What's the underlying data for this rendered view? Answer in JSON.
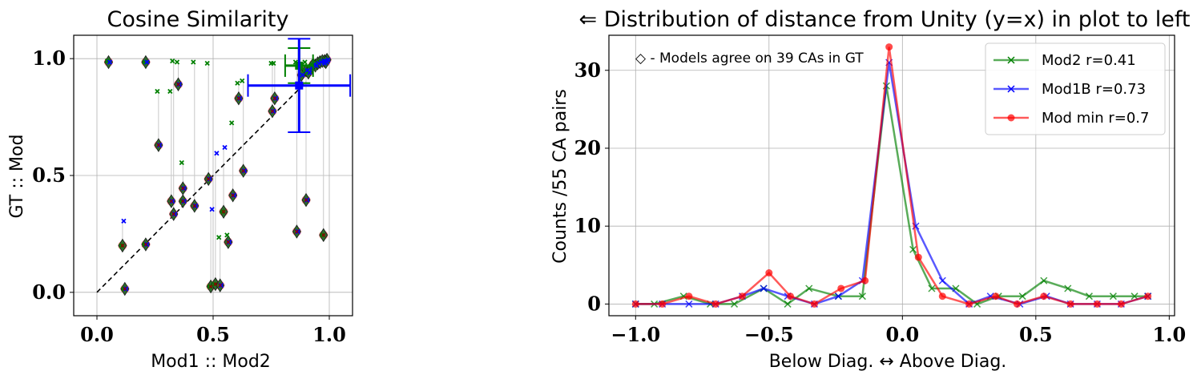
{
  "chart_data": [
    {
      "type": "scatter",
      "title": "Cosine Similarity",
      "xlabel": "Mod1 :: Mod2",
      "ylabel": "GT :: Mod",
      "xlim": [
        -0.1,
        1.1
      ],
      "ylim": [
        -0.1,
        1.1
      ],
      "xticks": [
        "0.0",
        "0.5",
        "1.0"
      ],
      "yticks": [
        "0.0",
        "0.5",
        "1.0"
      ],
      "grid": true,
      "diagonal": "y=x dashed line",
      "points": [
        {
          "x": 0.05,
          "y": 0.985,
          "gt_mod2": 0.99,
          "gt_mod1b": 0.985,
          "gt_min": 0.985
        },
        {
          "x": 0.11,
          "y": 0.2,
          "gt_mod2": 0.2,
          "gt_mod1b": 0.305,
          "gt_min": 0.2
        },
        {
          "x": 0.12,
          "y": 0.015,
          "gt_mod2": 0.015,
          "gt_mod1b": 0.015,
          "gt_min": 0.015
        },
        {
          "x": 0.21,
          "y": 0.985,
          "gt_mod2": 0.985,
          "gt_mod1b": 0.985,
          "gt_min": 0.985
        },
        {
          "x": 0.21,
          "y": 0.205,
          "gt_mod2": 0.205,
          "gt_mod1b": 0.205,
          "gt_min": 0.205
        },
        {
          "x": 0.265,
          "y": 0.63,
          "gt_mod2": 0.86,
          "gt_mod1b": 0.63,
          "gt_min": 0.63
        },
        {
          "x": 0.32,
          "y": 0.39,
          "gt_mod2": 0.86,
          "gt_mod1b": 0.39,
          "gt_min": 0.39
        },
        {
          "x": 0.33,
          "y": 0.335,
          "gt_mod2": 0.99,
          "gt_mod1b": 0.335,
          "gt_min": 0.335
        },
        {
          "x": 0.35,
          "y": 0.89,
          "gt_mod2": 0.985,
          "gt_mod1b": 0.89,
          "gt_min": 0.89
        },
        {
          "x": 0.37,
          "y": 0.445,
          "gt_mod2": 0.555,
          "gt_mod1b": 0.445,
          "gt_min": 0.445
        },
        {
          "x": 0.37,
          "y": 0.39,
          "gt_mod2": 0.39,
          "gt_mod1b": 0.39,
          "gt_min": 0.39
        },
        {
          "x": 0.42,
          "y": 0.37,
          "gt_mod2": 0.985,
          "gt_mod1b": 0.37,
          "gt_min": 0.37
        },
        {
          "x": 0.48,
          "y": 0.485,
          "gt_mod2": 0.98,
          "gt_mod1b": 0.485,
          "gt_min": 0.485
        },
        {
          "x": 0.49,
          "y": 0.025,
          "gt_mod2": 0.025,
          "gt_mod1b": 0.355,
          "gt_min": 0.025
        },
        {
          "x": 0.51,
          "y": 0.035,
          "gt_mod2": 0.035,
          "gt_mod1b": 0.595,
          "gt_min": 0.035
        },
        {
          "x": 0.53,
          "y": 0.03,
          "gt_mod2": 0.235,
          "gt_mod1b": 0.03,
          "gt_min": 0.03
        },
        {
          "x": 0.545,
          "y": 0.345,
          "gt_mod2": 0.345,
          "gt_mod1b": 0.62,
          "gt_min": 0.345
        },
        {
          "x": 0.565,
          "y": 0.215,
          "gt_mod2": 0.245,
          "gt_mod1b": 0.215,
          "gt_min": 0.215
        },
        {
          "x": 0.585,
          "y": 0.415,
          "gt_mod2": 0.725,
          "gt_mod1b": 0.415,
          "gt_min": 0.415
        },
        {
          "x": 0.61,
          "y": 0.83,
          "gt_mod2": 0.895,
          "gt_mod1b": 0.83,
          "gt_min": 0.83
        },
        {
          "x": 0.63,
          "y": 0.52,
          "gt_mod2": 0.905,
          "gt_mod1b": 0.52,
          "gt_min": 0.52
        },
        {
          "x": 0.755,
          "y": 0.775,
          "gt_mod2": 0.98,
          "gt_mod1b": 0.775,
          "gt_min": 0.775
        },
        {
          "x": 0.765,
          "y": 0.83,
          "gt_mod2": 0.98,
          "gt_mod1b": 0.83,
          "gt_min": 0.83
        },
        {
          "x": 0.86,
          "y": 0.26,
          "gt_mod2": 0.985,
          "gt_mod1b": 0.26,
          "gt_min": 0.26
        },
        {
          "x": 0.9,
          "y": 0.395,
          "gt_mod2": 0.985,
          "gt_mod1b": 0.395,
          "gt_min": 0.395
        },
        {
          "x": 0.975,
          "y": 0.245,
          "gt_mod2": 0.245,
          "gt_mod1b": 0.98,
          "gt_min": 0.245
        },
        {
          "x": 0.88,
          "y": 0.93,
          "gt_mod2": 0.93,
          "gt_mod1b": 0.93,
          "gt_min": 0.93
        },
        {
          "x": 0.9,
          "y": 0.95,
          "gt_mod2": 0.95,
          "gt_mod1b": 0.95,
          "gt_min": 0.95
        },
        {
          "x": 0.92,
          "y": 0.96,
          "gt_mod2": 0.96,
          "gt_mod1b": 0.96,
          "gt_min": 0.96
        },
        {
          "x": 0.94,
          "y": 0.97,
          "gt_mod2": 0.97,
          "gt_mod1b": 0.97,
          "gt_min": 0.97
        },
        {
          "x": 0.95,
          "y": 0.98,
          "gt_mod2": 0.98,
          "gt_mod1b": 0.98,
          "gt_min": 0.98
        },
        {
          "x": 0.96,
          "y": 0.985,
          "gt_mod2": 0.985,
          "gt_mod1b": 0.985,
          "gt_min": 0.985
        },
        {
          "x": 0.97,
          "y": 0.99,
          "gt_mod2": 0.99,
          "gt_mod1b": 0.99,
          "gt_min": 0.99
        },
        {
          "x": 0.98,
          "y": 0.99,
          "gt_mod2": 0.99,
          "gt_mod1b": 0.99,
          "gt_min": 0.99
        },
        {
          "x": 0.99,
          "y": 0.995,
          "gt_mod2": 0.995,
          "gt_mod1b": 0.995,
          "gt_min": 0.995
        },
        {
          "x": 0.985,
          "y": 0.985,
          "gt_mod2": 0.985,
          "gt_mod1b": 0.985,
          "gt_min": 0.985
        },
        {
          "x": 0.93,
          "y": 0.975,
          "gt_mod2": 0.975,
          "gt_mod1b": 0.975,
          "gt_min": 0.975
        },
        {
          "x": 0.91,
          "y": 0.94,
          "gt_mod2": 0.94,
          "gt_mod1b": 0.94,
          "gt_min": 0.94
        }
      ],
      "error_bars": [
        {
          "color": "#008000",
          "x": 0.87,
          "y": 0.97,
          "xerr": 0.06,
          "yerr": 0.075
        },
        {
          "color": "#0000ff",
          "x": 0.87,
          "y": 0.885,
          "xerr": 0.22,
          "yerr": 0.2
        }
      ],
      "colors": {
        "mod2": "#008000",
        "mod1b": "#0000ff",
        "min": "#ff0000",
        "diamond_fill": "#2e6b2e"
      }
    },
    {
      "type": "line",
      "title": "⇐ Distribution of distance from Unity (y=x) in plot to left",
      "xlabel": "Below Diag. ↔ Above Diag.",
      "ylabel": "Counts /55 CA pairs",
      "xlim": [
        -1.1,
        1.02
      ],
      "ylim": [
        -1.5,
        34.5
      ],
      "xticks": [
        "−1.0",
        "−0.5",
        "0.0",
        "0.5",
        "1.0"
      ],
      "yticks": [
        "0",
        "10",
        "20",
        "30"
      ],
      "grid": true,
      "legend_position": "top-right",
      "annotation": "◇ - Models agree on 39 CAs in GT",
      "x": [
        -1.0,
        -0.9,
        -0.8,
        -0.7,
        -0.6,
        -0.5,
        -0.4,
        -0.3,
        -0.2,
        -0.15,
        -0.05,
        0.05,
        0.15,
        0.25,
        0.35,
        0.45,
        0.55,
        0.65,
        0.75,
        0.85,
        0.95
      ],
      "series": [
        {
          "name": "Mod2 r=0.41",
          "color": "#008000",
          "marker": "x",
          "x": [
            -1.0,
            -0.93,
            -0.82,
            -0.72,
            -0.63,
            -0.52,
            -0.43,
            -0.35,
            -0.24,
            -0.15,
            -0.06,
            0.04,
            0.11,
            0.2,
            0.28,
            0.36,
            0.45,
            0.53,
            0.62,
            0.7,
            0.79,
            0.87,
            0.92
          ],
          "values": [
            0,
            0,
            1,
            0,
            0,
            2,
            0,
            2,
            1,
            1,
            28,
            7,
            2,
            2,
            0,
            1,
            1,
            3,
            2,
            1,
            1,
            1,
            1
          ]
        },
        {
          "name": "Mod1B r=0.73",
          "color": "#0000ff",
          "marker": "x",
          "x": [
            -1.0,
            -0.9,
            -0.8,
            -0.7,
            -0.6,
            -0.52,
            -0.43,
            -0.33,
            -0.24,
            -0.15,
            -0.05,
            0.05,
            0.15,
            0.25,
            0.33,
            0.44,
            0.54,
            0.63,
            0.73,
            0.82,
            0.92
          ],
          "values": [
            0,
            0,
            0,
            0,
            1,
            2,
            1,
            0,
            1,
            3,
            31,
            10,
            3,
            0,
            1,
            0,
            1,
            0,
            0,
            0,
            1
          ]
        },
        {
          "name": "Mod min r=0.7",
          "color": "#ff0000",
          "marker": "o",
          "x": [
            -1.0,
            -0.9,
            -0.8,
            -0.7,
            -0.6,
            -0.5,
            -0.42,
            -0.33,
            -0.23,
            -0.14,
            -0.05,
            0.06,
            0.15,
            0.25,
            0.35,
            0.43,
            0.53,
            0.63,
            0.73,
            0.82,
            0.92
          ],
          "values": [
            0,
            0,
            1,
            0,
            1,
            4,
            1,
            0,
            2,
            3,
            33,
            6,
            1,
            0,
            1,
            0,
            1,
            0,
            0,
            0,
            1
          ]
        }
      ]
    }
  ]
}
